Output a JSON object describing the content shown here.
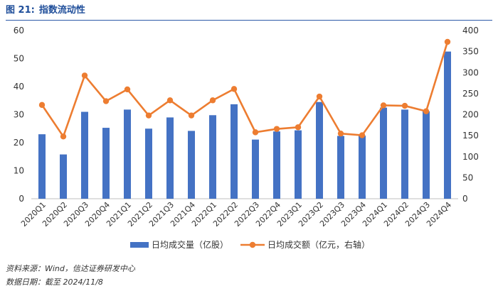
{
  "header": {
    "label": "图 21:",
    "title": "指数流动性"
  },
  "footer": {
    "source": "资料来源：Wind，信达证券研发中心",
    "date": "数据日期：截至 2024/11/8"
  },
  "colors": {
    "bar": "#4472C4",
    "line": "#ED7D31",
    "title": "#1f4e9a"
  },
  "chart_data": {
    "type": "bar+line",
    "categories": [
      "2020Q1",
      "2020Q2",
      "2020Q3",
      "2020Q4",
      "2021Q1",
      "2021Q2",
      "2021Q3",
      "2021Q4",
      "2022Q1",
      "2022Q2",
      "2022Q3",
      "2022Q4",
      "2023Q1",
      "2023Q2",
      "2023Q3",
      "2023Q4",
      "2024Q1",
      "2024Q2",
      "2024Q3",
      "2024Q4"
    ],
    "series": [
      {
        "name": "日均成交量（亿股）",
        "type": "bar",
        "axis": "left",
        "values": [
          23,
          15.8,
          31,
          25.3,
          31.8,
          25,
          29,
          24.2,
          29.8,
          33.7,
          21.1,
          24,
          24.4,
          34.5,
          22.4,
          22.5,
          32.5,
          31.8,
          31.2,
          52.5
        ]
      },
      {
        "name": "日均成交额（亿元，右轴）",
        "type": "line",
        "axis": "right",
        "values": [
          223,
          148,
          293,
          232,
          260,
          198,
          234,
          198,
          234,
          261,
          158,
          166,
          170,
          243,
          155,
          151,
          222,
          221,
          208,
          373
        ]
      }
    ],
    "y_left": {
      "min": 0,
      "max": 60,
      "ticks": [
        0,
        10,
        20,
        30,
        40,
        50,
        60
      ]
    },
    "y_right": {
      "min": 0,
      "max": 400,
      "ticks": [
        0,
        50,
        100,
        150,
        200,
        250,
        300,
        350,
        400
      ]
    },
    "legend": "bottom-center",
    "grid": false
  }
}
